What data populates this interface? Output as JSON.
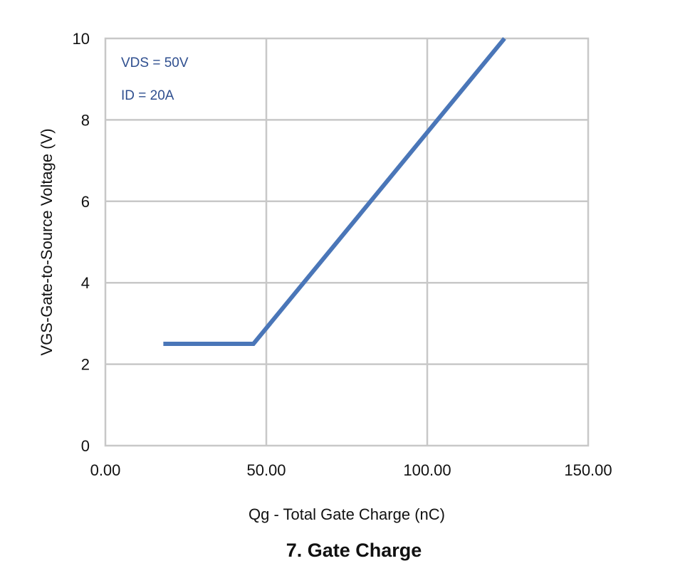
{
  "chart_data": {
    "type": "line",
    "title": "7. Gate Charge",
    "xlabel": "Qg - Total Gate Charge (nC)",
    "ylabel": "VGS-Gate-to-Source Voltage (V)",
    "xlim": [
      0,
      150
    ],
    "ylim": [
      0,
      10
    ],
    "x_ticks": [
      "0.00",
      "50.00",
      "100.00",
      "150.00"
    ],
    "y_ticks": [
      "0",
      "2",
      "4",
      "6",
      "8",
      "10"
    ],
    "grid": true,
    "annotations": [
      "VDS = 50V",
      "ID = 20A"
    ],
    "series": [
      {
        "color": "#4a76b8",
        "x": [
          18,
          46,
          124
        ],
        "y": [
          2.5,
          2.5,
          10
        ]
      }
    ]
  }
}
